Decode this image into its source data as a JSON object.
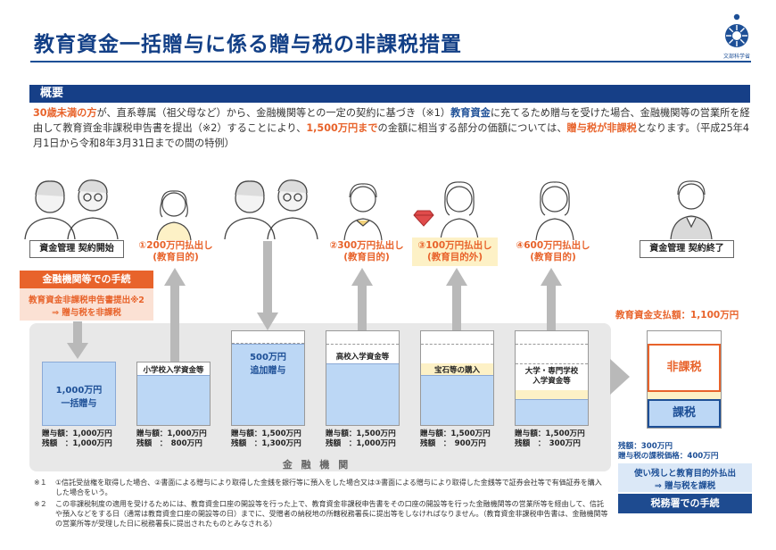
{
  "title": "教育資金一括贈与に係る贈与税の非課税措置",
  "logo_text": "文部科学省",
  "section_header": "概要",
  "overview": {
    "s1": "30歳未満の方",
    "s2": "が、直系尊属（祖父母など）から、金融機関等との一定の契約に基づき（※1）",
    "s3": "教育資金",
    "s4": "に充てるため贈与を受けた場合、金融機関等の営業所を経由して教育資金非課税申告書を提出（※2）することにより、",
    "s5": "1,500万円まで",
    "s6": "の金額に相当する部分の価額については、",
    "s7": "贈与税が非課税",
    "s8": "となります。（平成25年4月1日から令和8年3月31日までの間の特例）"
  },
  "labels": {
    "contract_start": "資金管理 契約開始",
    "contract_end": "資金管理 契約終了",
    "withdraw1": "①200万円払出し\n(教育目的)",
    "withdraw2": "②300万円払出し\n(教育目的)",
    "withdraw3": "③100万円払出し\n(教育目的外)",
    "withdraw4": "④600万円払出し\n(教育目的)"
  },
  "procedure": {
    "header": "金融機関等での手続",
    "line1": "教育資金非課税申告書提出※2",
    "line2": "⇒ 贈与税を非課税"
  },
  "columns": [
    {
      "bar_label": "1,000万円\n一括贈与",
      "gift": "贈与額：1,000万円",
      "balance": "残額　：1,000万円"
    },
    {
      "bar_label": "小学校入学資金等",
      "gift": "贈与額：1,000万円",
      "balance": "残額　：　800万円"
    },
    {
      "bar_label": "500万円\n追加贈与",
      "gift": "贈与額：1,500万円",
      "balance": "残額　：1,300万円"
    },
    {
      "bar_label": "高校入学資金等",
      "gift": "贈与額：1,500万円",
      "balance": "残額　：1,000万円"
    },
    {
      "bar_label": "宝石等の購入",
      "gift": "贈与額：1,500万円",
      "balance": "残額　：　900万円"
    },
    {
      "bar_label": "大学・専門学校\n入学資金等",
      "gift": "贈与額：1,500万円",
      "balance": "残額　：　300万円"
    }
  ],
  "institution_label": "金 融 機 関",
  "right": {
    "payout_total": "教育資金支払額：1,100万円",
    "nontax": "非課税",
    "tax": "課税",
    "remaining": "残額：300万円",
    "taxable_value": "贈与税の課税価格：400万円",
    "box_line1": "使い残しと教育目的外払出",
    "box_line2": "⇒ 贈与税を課税",
    "button": "税務署での手続"
  },
  "footnotes": {
    "n1_mark": "※１",
    "n1": "①信託受益権を取得した場合、②書面による贈与により取得した金銭を銀行等に預入をした場合又は③書面による贈与により取得した金銭等で証券会社等で有価証券を購入した場合をいう。",
    "n2_mark": "※２",
    "n2": "この非課税制度の適用を受けるためには、教育資金口座の開設等を行った上で、教育資金非課税申告書をその口座の開設等を行った金融機関等の営業所等を経由して、信託や預入などをする日（通常は教育資金口座の開設等の日）までに、受贈者の納税地の所轄税務署長に提出等をしなければなりません。（教育資金非課税申告書は、金融機関等の営業所等が受理した日に税務署長に提出されたものとみなされる）"
  },
  "colors": {
    "navy": "#163f87",
    "orange": "#e8632b",
    "light_blue": "#bcd7f5",
    "yellow": "#fdf1c6"
  }
}
